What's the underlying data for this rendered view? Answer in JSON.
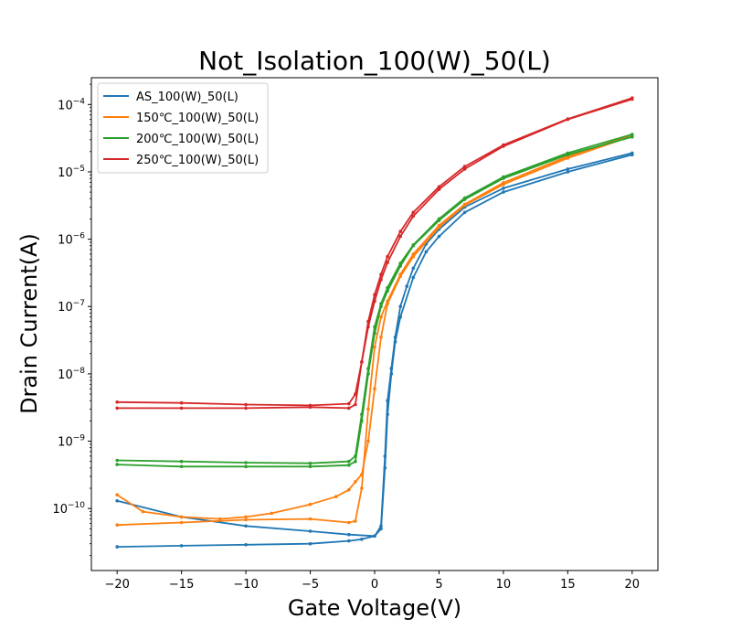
{
  "chart_data": {
    "type": "line",
    "title": "Not_Isolation_100(W)_50(L)",
    "xlabel": "Gate Voltage(V)",
    "ylabel": "Drain Current(A)",
    "xlim": [
      -22,
      22
    ],
    "ylim": [
      1.2e-11,
      0.00025
    ],
    "yscale": "log",
    "xticks": [
      -20,
      -15,
      -10,
      -5,
      0,
      5,
      10,
      15,
      20
    ],
    "xtick_labels": [
      "−20",
      "−15",
      "−10",
      "−5",
      "0",
      "5",
      "10",
      "15",
      "20"
    ],
    "yticks": [
      1e-10,
      1e-09,
      1e-08,
      1e-07,
      1e-06,
      1e-05,
      0.0001
    ],
    "ytick_labels": [
      {
        "base": "10",
        "exp": "−10"
      },
      {
        "base": "10",
        "exp": "−9"
      },
      {
        "base": "10",
        "exp": "−8"
      },
      {
        "base": "10",
        "exp": "−7"
      },
      {
        "base": "10",
        "exp": "−6"
      },
      {
        "base": "10",
        "exp": "−5"
      },
      {
        "base": "10",
        "exp": "−4"
      }
    ],
    "legend_position": "top-left",
    "grid": false,
    "series": [
      {
        "name": "AS_100(W)_50(L)",
        "color": "#1f77b4",
        "forward": {
          "x": [
            -20,
            -15,
            -10,
            -5,
            -2,
            -1,
            0,
            0.5,
            0.8,
            1.0,
            1.3,
            1.6,
            2,
            3,
            4,
            5,
            7,
            10,
            15,
            20
          ],
          "y": [
            2.7e-11,
            2.8e-11,
            2.9e-11,
            3e-11,
            3.3e-11,
            3.5e-11,
            3.9e-11,
            5e-11,
            4e-10,
            2.5e-09,
            1e-08,
            3e-08,
            7e-08,
            2.7e-07,
            6.5e-07,
            1.1e-06,
            2.5e-06,
            5e-06,
            1e-05,
            1.8e-05
          ]
        },
        "reverse": {
          "x": [
            20,
            15,
            10,
            7,
            5,
            4,
            3,
            2.5,
            2,
            1.6,
            1.3,
            1.0,
            0.8,
            0.5,
            0,
            -2,
            -5,
            -10,
            -15,
            -20
          ],
          "y": [
            1.9e-05,
            1.1e-05,
            5.7e-06,
            3e-06,
            1.4e-06,
            8.5e-07,
            3.7e-07,
            2e-07,
            1e-07,
            3.5e-08,
            1.2e-08,
            4e-09,
            6e-10,
            5.5e-11,
            3.9e-11,
            4.1e-11,
            4.6e-11,
            5.5e-11,
            7.5e-11,
            1.3e-10
          ]
        }
      },
      {
        "name": "150℃_100(W)_50(L)",
        "color": "#ff7f0e",
        "forward": {
          "x": [
            -20,
            -15,
            -10,
            -5,
            -2,
            -1.5,
            -1,
            -0.5,
            0,
            0.5,
            1,
            2,
            3,
            5,
            7,
            10,
            15,
            20
          ],
          "y": [
            5.7e-11,
            6.2e-11,
            6.8e-11,
            7e-11,
            6.2e-11,
            6.5e-11,
            2e-10,
            3e-09,
            2.5e-08,
            7e-08,
            1.2e-07,
            3e-07,
            6e-07,
            1.6e-06,
            3.3e-06,
            6.9e-06,
            1.7e-05,
            3.5e-05
          ]
        },
        "reverse": {
          "x": [
            20,
            15,
            10,
            7,
            5,
            3,
            2,
            1,
            0.5,
            0,
            -0.5,
            -1,
            -1.5,
            -2,
            -3,
            -5,
            -8,
            -10,
            -12,
            -15,
            -18,
            -20
          ],
          "y": [
            3.4e-05,
            1.6e-05,
            6.5e-06,
            3.2e-06,
            1.5e-06,
            5.5e-07,
            2.8e-07,
            1.1e-07,
            3.5e-08,
            6e-09,
            1e-09,
            3.2e-10,
            2.5e-10,
            1.9e-10,
            1.5e-10,
            1.15e-10,
            8.5e-11,
            7.5e-11,
            7e-11,
            7.5e-11,
            9e-11,
            1.6e-10
          ]
        }
      },
      {
        "name": "200℃_100(W)_50(L)",
        "color": "#2ca02c",
        "forward": {
          "x": [
            -20,
            -15,
            -10,
            -5,
            -2,
            -1.5,
            -1,
            -0.5,
            0,
            0.5,
            1,
            2,
            3,
            5,
            7,
            10,
            15,
            20
          ],
          "y": [
            4.5e-10,
            4.2e-10,
            4.2e-10,
            4.2e-10,
            4.4e-10,
            5e-10,
            2e-09,
            1e-08,
            4e-08,
            1e-07,
            1.7e-07,
            4e-07,
            8e-07,
            1.9e-06,
            3.9e-06,
            8e-06,
            1.8e-05,
            3.3e-05
          ]
        },
        "reverse": {
          "x": [
            20,
            15,
            10,
            7,
            5,
            3,
            2,
            1,
            0.5,
            0,
            -0.5,
            -1,
            -1.5,
            -2,
            -5,
            -10,
            -15,
            -20
          ],
          "y": [
            3.6e-05,
            1.9e-05,
            8.4e-06,
            4.1e-06,
            2e-06,
            8.2e-07,
            4.4e-07,
            1.9e-07,
            1.1e-07,
            5e-08,
            1.2e-08,
            2.5e-09,
            6e-10,
            5e-10,
            4.7e-10,
            4.8e-10,
            5e-10,
            5.2e-10
          ]
        }
      },
      {
        "name": "250℃_100(W)_50(L)",
        "color": "#d62728",
        "forward": {
          "x": [
            -20,
            -15,
            -10,
            -5,
            -2,
            -1.5,
            -1,
            -0.5,
            0,
            0.5,
            1,
            2,
            3,
            5,
            7,
            10,
            15,
            20
          ],
          "y": [
            3.1e-09,
            3.1e-09,
            3.1e-09,
            3.2e-09,
            3.1e-09,
            3.5e-09,
            1.5e-08,
            5e-08,
            1.2e-07,
            2.5e-07,
            4.5e-07,
            1.1e-06,
            2.2e-06,
            5.5e-06,
            1.1e-05,
            2.4e-05,
            6e-05,
            0.00012
          ]
        },
        "reverse": {
          "x": [
            20,
            15,
            10,
            7,
            5,
            3,
            2,
            1,
            0.5,
            0,
            -0.5,
            -1,
            -1.5,
            -2,
            -5,
            -10,
            -15,
            -20
          ],
          "y": [
            0.000125,
            6.1e-05,
            2.5e-05,
            1.2e-05,
            6e-06,
            2.5e-06,
            1.3e-06,
            5.5e-07,
            3e-07,
            1.5e-07,
            6e-08,
            1.5e-08,
            5e-09,
            3.6e-09,
            3.4e-09,
            3.5e-09,
            3.7e-09,
            3.8e-09
          ]
        }
      }
    ]
  }
}
